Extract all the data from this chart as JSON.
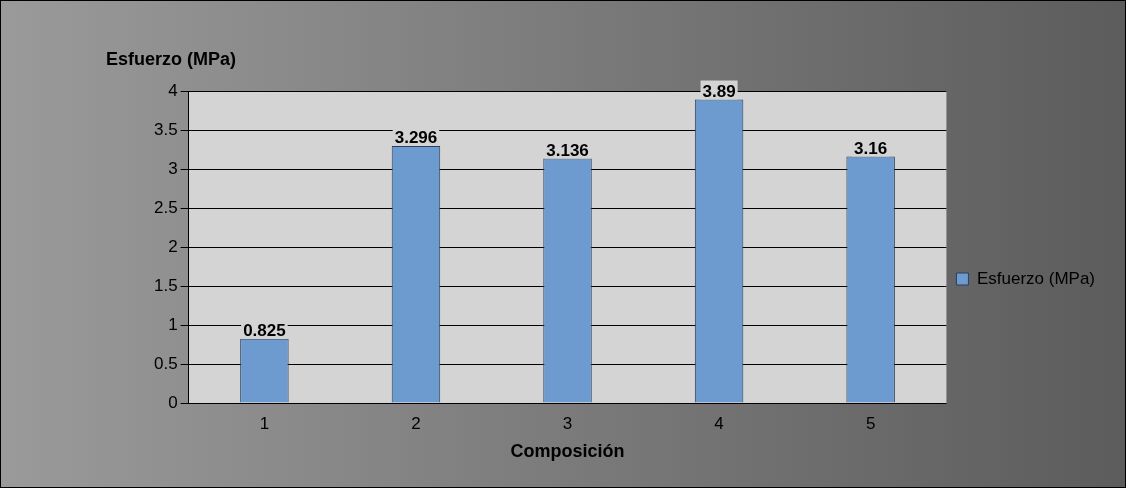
{
  "chart_data": {
    "type": "bar",
    "ylabel": "Esfuerzo (MPa)",
    "xlabel": "Composición",
    "categories": [
      "1",
      "2",
      "3",
      "4",
      "5"
    ],
    "series": [
      {
        "name": "Esfuerzo (MPa)",
        "color": "#6d9bd0",
        "values": [
          0.825,
          3.296,
          3.136,
          3.89,
          3.16
        ]
      }
    ],
    "ylim": [
      0,
      4
    ],
    "yticks": [
      0,
      0.5,
      1,
      1.5,
      2,
      2.5,
      3,
      3.5,
      4
    ],
    "grid": "y",
    "legend": "right",
    "data_labels": true
  }
}
